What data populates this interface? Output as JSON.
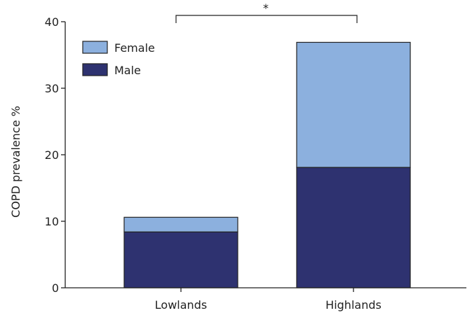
{
  "chart_data": {
    "type": "bar",
    "stacked": true,
    "categories": [
      "Lowlands",
      "Highlands"
    ],
    "series": [
      {
        "name": "Male",
        "values": [
          8.4,
          18.1
        ],
        "color": "#2e3270"
      },
      {
        "name": "Female",
        "values": [
          2.2,
          18.8
        ],
        "color": "#8cb0de"
      }
    ],
    "title": "",
    "xlabel": "",
    "ylabel": "COPD prevalence %",
    "ylim": [
      0,
      40
    ],
    "yticks": [
      0,
      10,
      20,
      30,
      40
    ],
    "grid": false,
    "legend": {
      "position": "top-left",
      "order": [
        "Female",
        "Male"
      ]
    },
    "annotation": {
      "text": "*",
      "between": [
        "Lowlands",
        "Highlands"
      ]
    }
  }
}
